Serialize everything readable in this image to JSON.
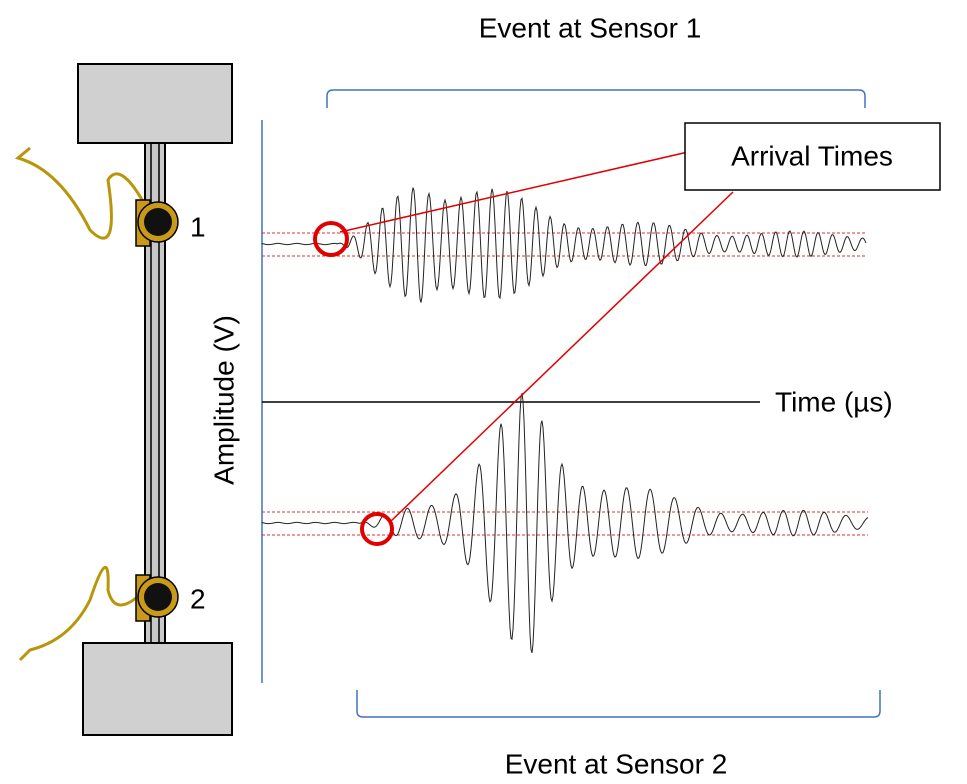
{
  "brackets": [
    {
      "label": "Event at Sensor 1"
    },
    {
      "label": "Event at Sensor 2"
    }
  ],
  "callout": "Arrival Times",
  "y_axis_label": "Amplitude (V)",
  "x_axis_label": "Time (µs)",
  "sensors": [
    {
      "label": "1"
    },
    {
      "label": "2"
    }
  ]
}
